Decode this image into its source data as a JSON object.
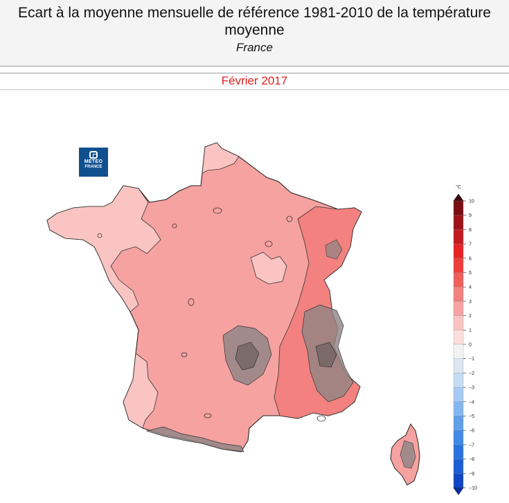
{
  "header": {
    "title": "Ecart à la moyenne mensuelle de référence 1981-2010 de la température moyenne",
    "subtitle": "France"
  },
  "period": "Février 2017",
  "logo": {
    "line1": "METEO",
    "line2": "FRANCE",
    "bg_color": "#10508f"
  },
  "legend": {
    "unit": "°C",
    "values": [
      10,
      9,
      8,
      7,
      6,
      5,
      4,
      3,
      2,
      1,
      0,
      -1,
      -2,
      -3,
      -4,
      -5,
      -6,
      -7,
      -8,
      -9,
      -10
    ],
    "colors": [
      "#7a0e12",
      "#9c1318",
      "#c31a1f",
      "#e52426",
      "#ee3e3c",
      "#ee5f5e",
      "#f2817f",
      "#f6a2a1",
      "#f9c4c2",
      "#fcdedd",
      "#f2f2f2",
      "#dde6f0",
      "#c6dcf3",
      "#a7cbf3",
      "#86b6f0",
      "#62a0ec",
      "#428ae8",
      "#2b74e0",
      "#1c5ed4",
      "#1147c4"
    ],
    "top_arrow_color": "#3d0608",
    "bottom_arrow_color": "#0a2aa8"
  },
  "map_colors": {
    "class_1_2": "#f9c4c2",
    "class_2_3": "#f6a2a1",
    "class_3_4": "#f2817f",
    "cool_patch": "#8f8484",
    "cool_patch_dark": "#6b6060"
  }
}
